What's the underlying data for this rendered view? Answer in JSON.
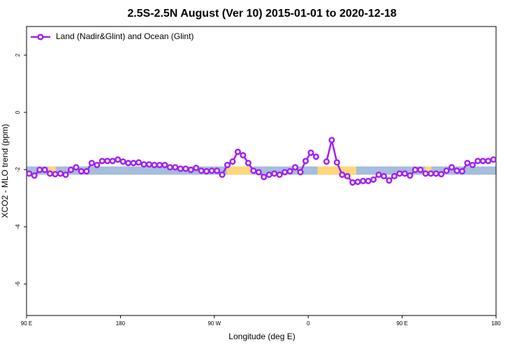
{
  "chart_data": {
    "type": "line",
    "title": "2.5S-2.5N August (Ver 10)   2015-01-01 to 2020-12-18",
    "x_label": "Longitude (deg E)",
    "y_label": "XCO2 - MLO trend (ppm)",
    "xlim": [
      90,
      540
    ],
    "ylim": [
      -7.1,
      3
    ],
    "xticks": [
      {
        "value": 90,
        "label": "90 E"
      },
      180,
      {
        "value": 270,
        "label": "90 W"
      },
      {
        "value": 360,
        "label": "0"
      },
      {
        "value": 450,
        "label": "90 E"
      },
      {
        "value": 540,
        "label": "180"
      }
    ],
    "yticks": [
      2,
      0,
      -2,
      -4,
      -6
    ],
    "band": [
      -2.18,
      -1.89
    ],
    "band_color": "#a6bddb",
    "highlights": [
      [
        111,
        118
      ],
      [
        282,
        306
      ],
      [
        369,
        406
      ],
      [
        472,
        478
      ]
    ],
    "highlight_color": "#fdd87a",
    "legend": "top-left",
    "x": [
      92.5,
      97.5,
      102.5,
      107.5,
      112.5,
      117.5,
      122.5,
      127.5,
      132.5,
      137.5,
      142.5,
      147.5,
      152.5,
      157.5,
      162.5,
      167.5,
      172.5,
      177.5,
      182.5,
      187.5,
      192.5,
      197.5,
      202.5,
      207.5,
      212.5,
      217.5,
      222.5,
      227.5,
      232.5,
      237.5,
      242.5,
      247.5,
      252.5,
      257.5,
      262.5,
      267.5,
      272.5,
      277.5,
      282.5,
      287.5,
      292.5,
      297.5,
      302.5,
      307.5,
      312.5,
      317.5,
      322.5,
      327.5,
      332.5,
      337.5,
      342.5,
      347.5,
      352.5,
      357.5,
      362.5,
      367.5,
      372.5,
      377.5,
      382.5,
      387.5,
      392.5,
      397.5,
      402.5,
      407.5,
      412.5,
      417.5,
      422.5,
      427.5,
      432.5,
      437.5,
      442.5,
      447.5,
      452.5,
      457.5,
      462.5,
      467.5,
      472.5,
      477.5,
      482.5,
      487.5,
      492.5,
      497.5,
      502.5,
      507.5,
      512.5,
      517.5,
      522.5,
      527.5,
      532.5,
      537.5
    ],
    "series": [
      {
        "name": "Land (Nadir&Glint) and Ocean (Glint)",
        "color": "#a020f0",
        "values": [
          -2.14,
          -2.21,
          -2.01,
          -2.01,
          -2.14,
          -2.16,
          -2.14,
          -2.18,
          -2.01,
          -1.92,
          -2.06,
          -2.06,
          -1.77,
          -1.84,
          -1.7,
          -1.7,
          -1.7,
          -1.65,
          -1.72,
          -1.77,
          -1.77,
          -1.75,
          -1.82,
          -1.82,
          -1.84,
          -1.84,
          -1.84,
          -1.92,
          -1.92,
          -1.97,
          -1.97,
          -2.01,
          -1.94,
          -2.04,
          -2.06,
          -2.04,
          -2.04,
          -2.18,
          -1.84,
          -1.72,
          -1.38,
          -1.5,
          -1.77,
          -2.04,
          -2.09,
          -2.26,
          -2.18,
          -2.14,
          -2.18,
          -2.09,
          -2.06,
          -1.92,
          -2.09,
          -1.7,
          -1.41,
          -1.55,
          null,
          -1.72,
          -0.97,
          -1.75,
          -2.18,
          -2.23,
          -2.45,
          -2.43,
          -2.4,
          -2.4,
          -2.35,
          -2.18,
          -2.23,
          -2.38,
          -2.23,
          -2.14,
          -2.14,
          -2.21,
          -2.01,
          -2.01,
          -2.14,
          -2.14,
          -2.14,
          -2.16,
          -2.04,
          -1.92,
          -2.04,
          -2.06,
          -1.77,
          -1.84,
          -1.7,
          -1.7,
          -1.7,
          -1.65
        ]
      }
    ]
  }
}
